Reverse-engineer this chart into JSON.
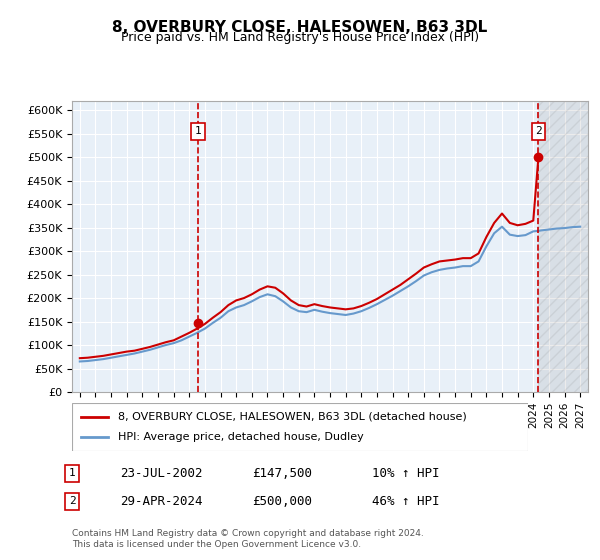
{
  "title": "8, OVERBURY CLOSE, HALESOWEN, B63 3DL",
  "subtitle": "Price paid vs. HM Land Registry's House Price Index (HPI)",
  "ylabel_ticks": [
    "£0",
    "£50K",
    "£100K",
    "£150K",
    "£200K",
    "£250K",
    "£300K",
    "£350K",
    "£400K",
    "£450K",
    "£500K",
    "£550K",
    "£600K"
  ],
  "ytick_values": [
    0,
    50000,
    100000,
    150000,
    200000,
    250000,
    300000,
    350000,
    400000,
    450000,
    500000,
    550000,
    600000
  ],
  "xlim": [
    1994.5,
    2027.5
  ],
  "ylim": [
    0,
    620000
  ],
  "transaction1": {
    "year": 2002.55,
    "price": 147500,
    "label": "1",
    "date": "23-JUL-2002",
    "hpi_pct": "10% ↑ HPI"
  },
  "transaction2": {
    "year": 2024.33,
    "price": 500000,
    "label": "2",
    "date": "29-APR-2024",
    "hpi_pct": "46% ↑ HPI"
  },
  "legend_line1": "8, OVERBURY CLOSE, HALESOWEN, B63 3DL (detached house)",
  "legend_line2": "HPI: Average price, detached house, Dudley",
  "footer": "Contains HM Land Registry data © Crown copyright and database right 2024.\nThis data is licensed under the Open Government Licence v3.0.",
  "table_rows": [
    {
      "num": "1",
      "date": "23-JUL-2002",
      "price": "£147,500",
      "hpi": "10% ↑ HPI"
    },
    {
      "num": "2",
      "date": "29-APR-2024",
      "price": "£500,000",
      "hpi": "46% ↑ HPI"
    }
  ],
  "hpi_red_x": [
    1995,
    1995.5,
    1996,
    1996.5,
    1997,
    1997.5,
    1998,
    1998.5,
    1999,
    1999.5,
    2000,
    2000.5,
    2001,
    2001.5,
    2002,
    2002.5,
    2003,
    2003.5,
    2004,
    2004.5,
    2005,
    2005.5,
    2006,
    2006.5,
    2007,
    2007.5,
    2008,
    2008.5,
    2009,
    2009.5,
    2010,
    2010.5,
    2011,
    2011.5,
    2012,
    2012.5,
    2013,
    2013.5,
    2014,
    2014.5,
    2015,
    2015.5,
    2016,
    2016.5,
    2017,
    2017.5,
    2018,
    2018.5,
    2019,
    2019.5,
    2020,
    2020.5,
    2021,
    2021.5,
    2022,
    2022.5,
    2023,
    2023.5,
    2024,
    2024.33
  ],
  "hpi_red_y": [
    72000,
    73000,
    75000,
    77000,
    80000,
    83000,
    86000,
    88000,
    92000,
    96000,
    101000,
    106000,
    110000,
    118000,
    126000,
    135000,
    145000,
    158000,
    170000,
    185000,
    195000,
    200000,
    208000,
    218000,
    225000,
    222000,
    210000,
    195000,
    185000,
    182000,
    187000,
    183000,
    180000,
    178000,
    176000,
    178000,
    183000,
    190000,
    198000,
    208000,
    218000,
    228000,
    240000,
    252000,
    265000,
    272000,
    278000,
    280000,
    282000,
    285000,
    285000,
    295000,
    330000,
    360000,
    380000,
    360000,
    355000,
    358000,
    365000,
    500000
  ],
  "hpi_blue_x": [
    1995,
    1995.5,
    1996,
    1996.5,
    1997,
    1997.5,
    1998,
    1998.5,
    1999,
    1999.5,
    2000,
    2000.5,
    2001,
    2001.5,
    2002,
    2002.5,
    2003,
    2003.5,
    2004,
    2004.5,
    2005,
    2005.5,
    2006,
    2006.5,
    2007,
    2007.5,
    2008,
    2008.5,
    2009,
    2009.5,
    2010,
    2010.5,
    2011,
    2011.5,
    2012,
    2012.5,
    2013,
    2013.5,
    2014,
    2014.5,
    2015,
    2015.5,
    2016,
    2016.5,
    2017,
    2017.5,
    2018,
    2018.5,
    2019,
    2019.5,
    2020,
    2020.5,
    2021,
    2021.5,
    2022,
    2022.5,
    2023,
    2023.5,
    2024,
    2024.33,
    2024.5,
    2025,
    2025.5,
    2026,
    2026.5,
    2027
  ],
  "hpi_blue_y": [
    65000,
    66000,
    68000,
    70000,
    73000,
    76000,
    79000,
    82000,
    86000,
    90000,
    95000,
    100000,
    104000,
    110000,
    118000,
    126000,
    135000,
    147000,
    158000,
    172000,
    180000,
    185000,
    193000,
    202000,
    208000,
    204000,
    193000,
    180000,
    172000,
    170000,
    175000,
    171000,
    168000,
    166000,
    164000,
    167000,
    172000,
    179000,
    187000,
    196000,
    205000,
    215000,
    225000,
    236000,
    248000,
    255000,
    260000,
    263000,
    265000,
    268000,
    268000,
    278000,
    310000,
    338000,
    352000,
    335000,
    332000,
    334000,
    342000,
    343000,
    344000,
    346000,
    348000,
    349000,
    351000,
    352000
  ],
  "hatch_start": 2024.33,
  "bg_color": "#dde8f0",
  "plot_bg": "#e8f0f8",
  "red_color": "#cc0000",
  "blue_color": "#6699cc",
  "marker1_x": 2002.55,
  "marker1_y": 147500,
  "marker2_x": 2024.33,
  "marker2_y": 500000
}
